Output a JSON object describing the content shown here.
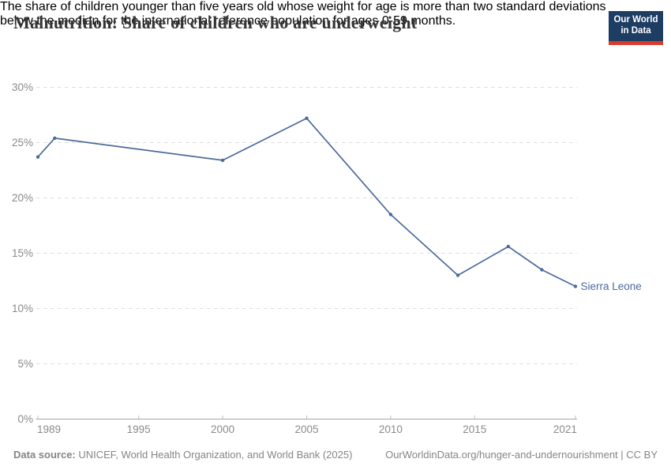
{
  "chart_data": {
    "type": "line",
    "title": "Malnutrition: Share of children who are underweight",
    "subtitle_lines": [
      "The share of children younger than five years old whose weight for age is more than two standard deviations",
      "below the median for the international reference population for ages 0-59 months."
    ],
    "series": [
      {
        "name": "Sierra Leone",
        "color": "#4c6a9c",
        "points": [
          [
            1989,
            23.7
          ],
          [
            1990,
            25.4
          ],
          [
            2000,
            23.4
          ],
          [
            2005,
            27.2
          ],
          [
            2010,
            18.5
          ],
          [
            2014,
            13.0
          ],
          [
            2017,
            15.6
          ],
          [
            2019,
            13.5
          ],
          [
            2021,
            12.0
          ]
        ]
      }
    ],
    "xlim": [
      1989,
      2021
    ],
    "ylim": [
      0,
      30
    ],
    "x_ticks": [
      1989,
      1995,
      2000,
      2005,
      2010,
      2015,
      2021
    ],
    "y_ticks": [
      0,
      5,
      10,
      15,
      20,
      25,
      30
    ],
    "y_tick_suffix": "%",
    "grid": "horizontal-dashed",
    "legend_position": "end-of-line-label",
    "xlabel": "",
    "ylabel": ""
  },
  "header": {
    "logo": {
      "line1": "Our World",
      "line2": "in Data",
      "bg_color": "#1d3d63",
      "accent_color": "#d93a2b"
    }
  },
  "colors": {
    "line": "#4c6a9c",
    "gridline": "#dedede",
    "axis": "#a3a3a3",
    "tick": "#bdbdbd",
    "axis_label": "#8a8a8a",
    "title": "#353535",
    "subtitle": "#696969",
    "footer": "#858585"
  },
  "footer": {
    "source_label": "Data source:",
    "source_text": " UNICEF, World Health Organization, and World Bank (2025)",
    "link_text": "OurWorldinData.org/hunger-and-undernourishment | CC BY"
  }
}
